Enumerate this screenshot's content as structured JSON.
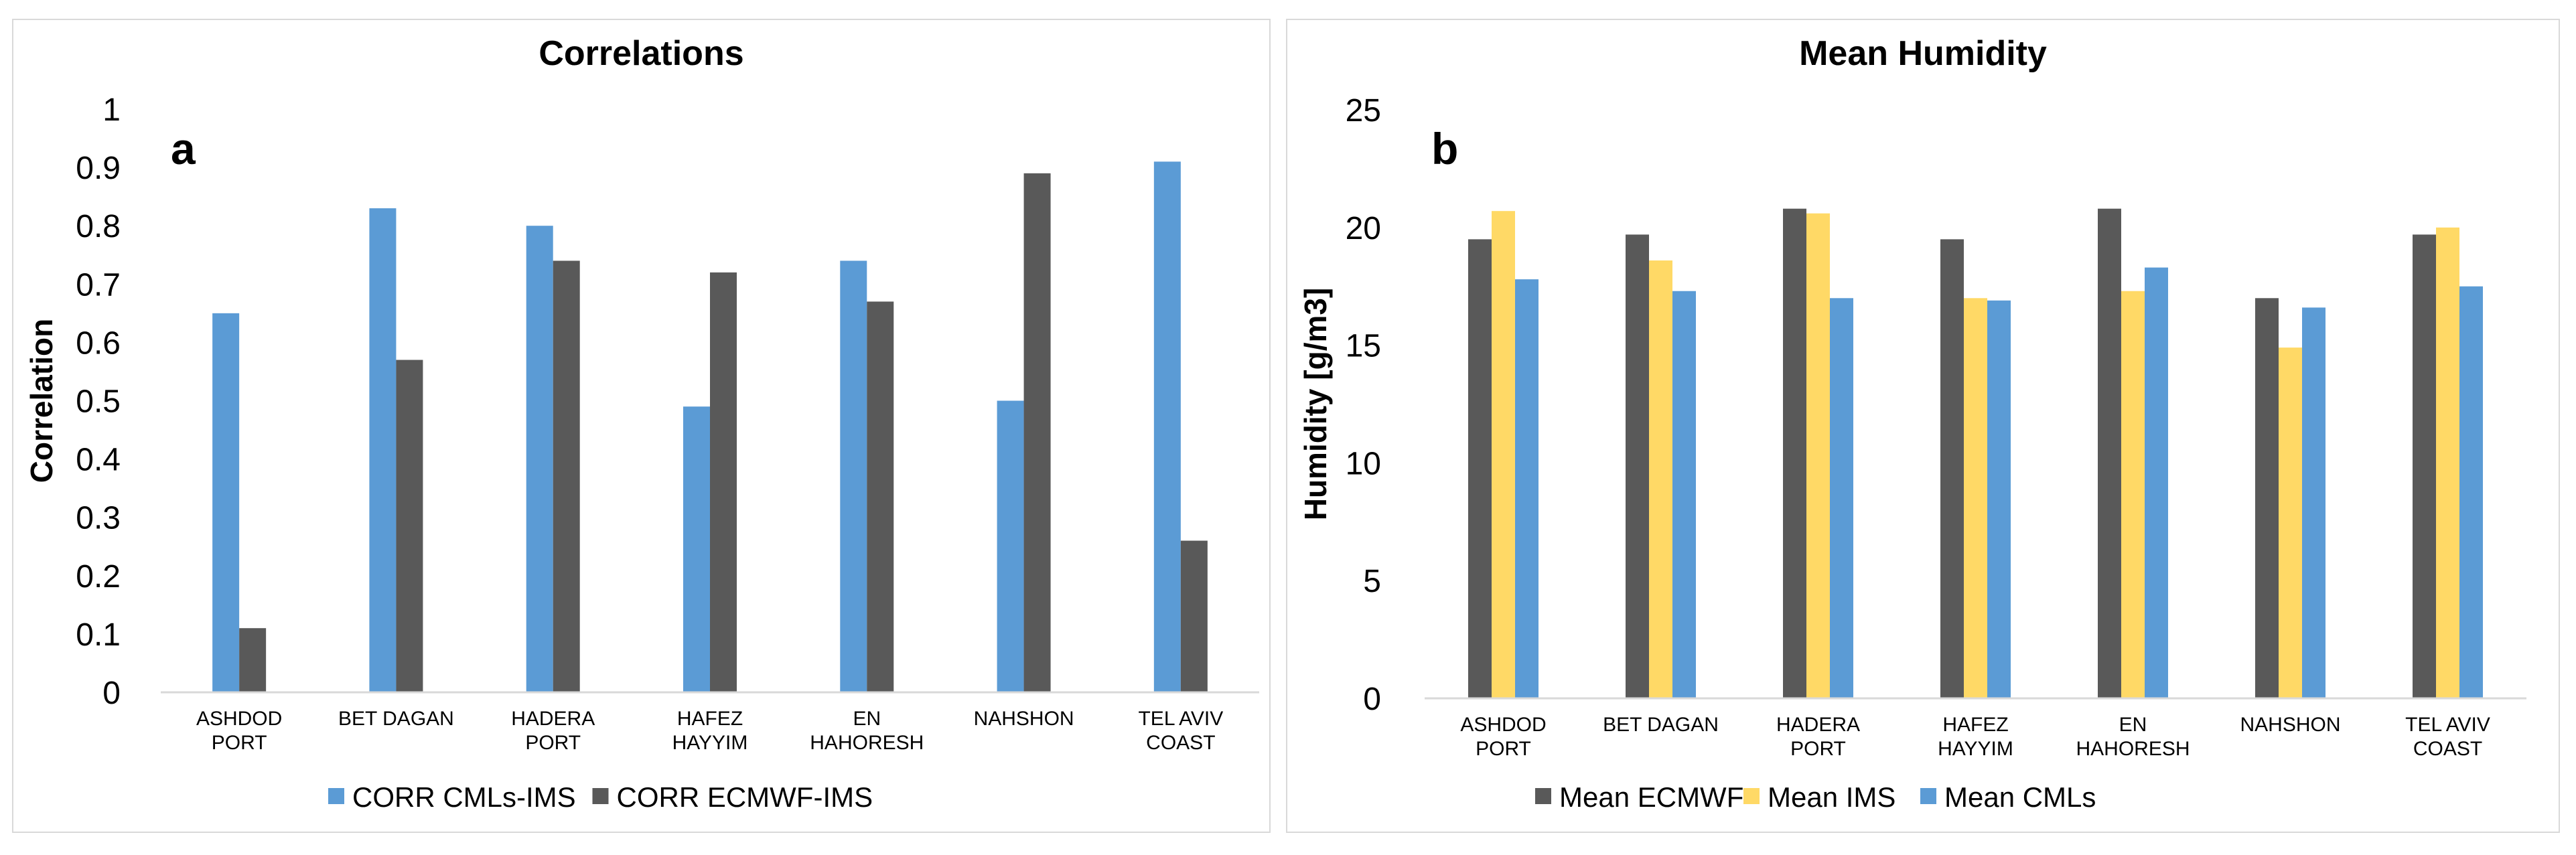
{
  "chart_data": [
    {
      "type": "bar",
      "panel_letter": "a",
      "title": "Correlations",
      "xlabel": "",
      "ylabel": "Correlation",
      "ylim": [
        0,
        1
      ],
      "yticks": [
        "0",
        "0.1",
        "0.2",
        "0.3",
        "0.4",
        "0.5",
        "0.6",
        "0.7",
        "0.8",
        "0.9",
        "1"
      ],
      "categories": [
        [
          "ASHDOD",
          "PORT"
        ],
        [
          "BET DAGAN"
        ],
        [
          "HADERA",
          "PORT"
        ],
        [
          "HAFEZ",
          "HAYYIM"
        ],
        [
          "EN",
          "HAHORESH"
        ],
        [
          "NAHSHON"
        ],
        [
          "TEL AVIV",
          "COAST"
        ]
      ],
      "series": [
        {
          "name": "CORR CMLs-IMS",
          "color": "#5b9bd5",
          "values": [
            0.65,
            0.83,
            0.8,
            0.49,
            0.74,
            0.5,
            0.91
          ]
        },
        {
          "name": "CORR ECMWF-IMS",
          "color": "#595959",
          "values": [
            0.11,
            0.57,
            0.74,
            0.72,
            0.67,
            0.89,
            0.26
          ]
        }
      ],
      "legend": "bottom",
      "grid": false
    },
    {
      "type": "bar",
      "panel_letter": "b",
      "title": "Mean Humidity",
      "xlabel": "",
      "ylabel": "Humidity [g/m3]",
      "ylim": [
        0,
        25
      ],
      "yticks": [
        "0",
        "5",
        "10",
        "15",
        "20",
        "25"
      ],
      "categories": [
        [
          "ASHDOD",
          "PORT"
        ],
        [
          "BET DAGAN"
        ],
        [
          "HADERA",
          "PORT"
        ],
        [
          "HAFEZ",
          "HAYYIM"
        ],
        [
          "EN",
          "HAHORESH"
        ],
        [
          "NAHSHON"
        ],
        [
          "TEL AVIV",
          "COAST"
        ]
      ],
      "series": [
        {
          "name": "Mean ECMWF",
          "color": "#595959",
          "values": [
            19.5,
            19.7,
            20.8,
            19.5,
            20.8,
            17.0,
            19.7
          ]
        },
        {
          "name": "Mean IMS",
          "color": "#ffd966",
          "values": [
            20.7,
            18.6,
            20.6,
            17.0,
            17.3,
            14.9,
            20.0
          ]
        },
        {
          "name": "Mean CMLs",
          "color": "#5b9bd5",
          "values": [
            17.8,
            17.3,
            17.0,
            16.9,
            18.3,
            16.6,
            17.5
          ]
        }
      ],
      "legend": "bottom",
      "grid": false
    }
  ]
}
